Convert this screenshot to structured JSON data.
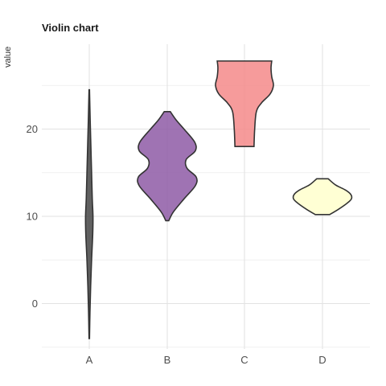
{
  "chart_data": {
    "type": "violin",
    "title": "Violin chart",
    "xlabel": "",
    "ylabel": "value",
    "ylim": [
      -5,
      30
    ],
    "y_ticks": [
      0,
      10,
      20
    ],
    "grid": true,
    "categories": [
      "A",
      "B",
      "C",
      "D"
    ],
    "series": [
      {
        "category": "A",
        "color": "#3b3b3b",
        "opacity": 0.8,
        "density": [
          [
            -4,
            0.01
          ],
          [
            -1,
            0.03
          ],
          [
            2,
            0.06
          ],
          [
            5,
            0.1
          ],
          [
            8,
            0.15
          ],
          [
            10,
            0.16
          ],
          [
            12,
            0.13
          ],
          [
            15,
            0.1
          ],
          [
            18,
            0.07
          ],
          [
            21,
            0.04
          ],
          [
            24.5,
            0.01
          ]
        ]
      },
      {
        "category": "B",
        "color": "#8e5aa6",
        "opacity": 0.85,
        "density": [
          [
            9.5,
            0.05
          ],
          [
            10.5,
            0.2
          ],
          [
            12,
            0.55
          ],
          [
            13.5,
            0.92
          ],
          [
            14.5,
            0.95
          ],
          [
            15.5,
            0.65
          ],
          [
            16.5,
            0.62
          ],
          [
            17.5,
            0.92
          ],
          [
            18.5,
            0.9
          ],
          [
            20,
            0.55
          ],
          [
            21,
            0.3
          ],
          [
            22,
            0.1
          ]
        ]
      },
      {
        "category": "C",
        "color": "#f58a8a",
        "opacity": 0.85,
        "density": [
          [
            18,
            0.28
          ],
          [
            20,
            0.3
          ],
          [
            22,
            0.35
          ],
          [
            23,
            0.5
          ],
          [
            24,
            0.75
          ],
          [
            25,
            0.85
          ],
          [
            26,
            0.8
          ],
          [
            27,
            0.78
          ],
          [
            27.8,
            0.8
          ]
        ]
      },
      {
        "category": "D",
        "color": "#ffffd4",
        "opacity": 1,
        "density": [
          [
            10.2,
            0.25
          ],
          [
            10.8,
            0.55
          ],
          [
            11.5,
            0.85
          ],
          [
            12,
            1.0
          ],
          [
            12.5,
            0.98
          ],
          [
            13,
            0.8
          ],
          [
            13.6,
            0.45
          ],
          [
            14.3,
            0.2
          ]
        ]
      }
    ]
  }
}
